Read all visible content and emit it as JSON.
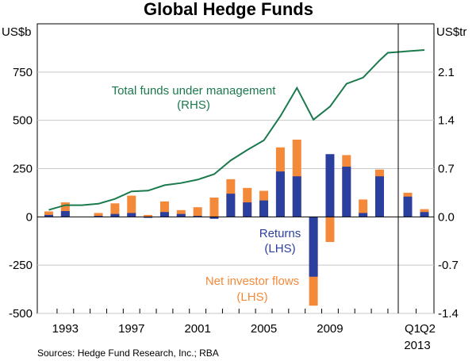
{
  "chart_data": {
    "type": "bar",
    "title": "Global Hedge Funds",
    "left_axis_label": "US$b",
    "right_axis_label": "US$tr",
    "left_ticks": [
      750,
      500,
      250,
      0,
      -250,
      -500
    ],
    "left_tick_labels": [
      "750",
      "500",
      "250",
      "0",
      "-250",
      "-500"
    ],
    "right_ticks": [
      2.1,
      1.4,
      0.7,
      0.0,
      -0.7,
      -1.4
    ],
    "right_tick_labels": [
      "2.1",
      "1.4",
      "0.7",
      "0.0",
      "-0.7",
      "-1.4"
    ],
    "ylim_left": [
      -500,
      1000
    ],
    "ylim_right": [
      -1.4,
      2.8
    ],
    "x_labels": [
      "1993",
      "1997",
      "2001",
      "2005",
      "2009"
    ],
    "x_label_positions": [
      1993,
      1997,
      2001,
      2005,
      2009
    ],
    "quarter_labels": [
      "Q1",
      "Q2"
    ],
    "quarter_year_label": "2013",
    "categories": [
      "1992",
      "1993",
      "1994",
      "1995",
      "1996",
      "1997",
      "1998",
      "1999",
      "2000",
      "2001",
      "2002",
      "2003",
      "2004",
      "2005",
      "2006",
      "2007",
      "2008",
      "2009",
      "2010",
      "2011",
      "2012",
      "2013 Q1",
      "2013 Q2"
    ],
    "series": [
      {
        "name": "Returns",
        "unit": "LHS",
        "color": "#2b3f9e",
        "values": [
          10,
          30,
          0,
          5,
          15,
          20,
          -5,
          25,
          15,
          5,
          -10,
          120,
          75,
          85,
          235,
          210,
          -310,
          325,
          260,
          20,
          210,
          105,
          25
        ]
      },
      {
        "name": "Net investor flows",
        "unit": "LHS",
        "color": "#f5893a",
        "values": [
          28,
          75,
          0,
          20,
          70,
          110,
          10,
          80,
          35,
          50,
          100,
          195,
          150,
          135,
          360,
          400,
          -460,
          -130,
          320,
          90,
          245,
          125,
          40
        ]
      },
      {
        "name": "Total funds under management",
        "unit": "RHS",
        "color": "#1b7a4d",
        "x": [
          1992,
          1993,
          1994,
          1995,
          1996,
          1997,
          1998,
          1999,
          2000,
          2001,
          2002,
          2003,
          2004,
          2005,
          2006,
          2007,
          2008,
          2009,
          2010,
          2011,
          2012,
          2012.5,
          2013.25
        ],
        "values": [
          0.1,
          0.17,
          0.17,
          0.19,
          0.26,
          0.37,
          0.38,
          0.46,
          0.49,
          0.54,
          0.62,
          0.82,
          0.97,
          1.11,
          1.46,
          1.87,
          1.41,
          1.6,
          1.93,
          2.02,
          2.27,
          2.38,
          2.42
        ]
      }
    ],
    "annotations": {
      "fum_label": "Total funds under management",
      "fum_unit": "(RHS)",
      "returns_label": "Returns",
      "returns_unit": "(LHS)",
      "flows_label": "Net investor flows",
      "flows_unit": "(LHS)"
    },
    "source": "Sources: Hedge Fund Research, Inc.; RBA",
    "grid": "horizontal"
  }
}
